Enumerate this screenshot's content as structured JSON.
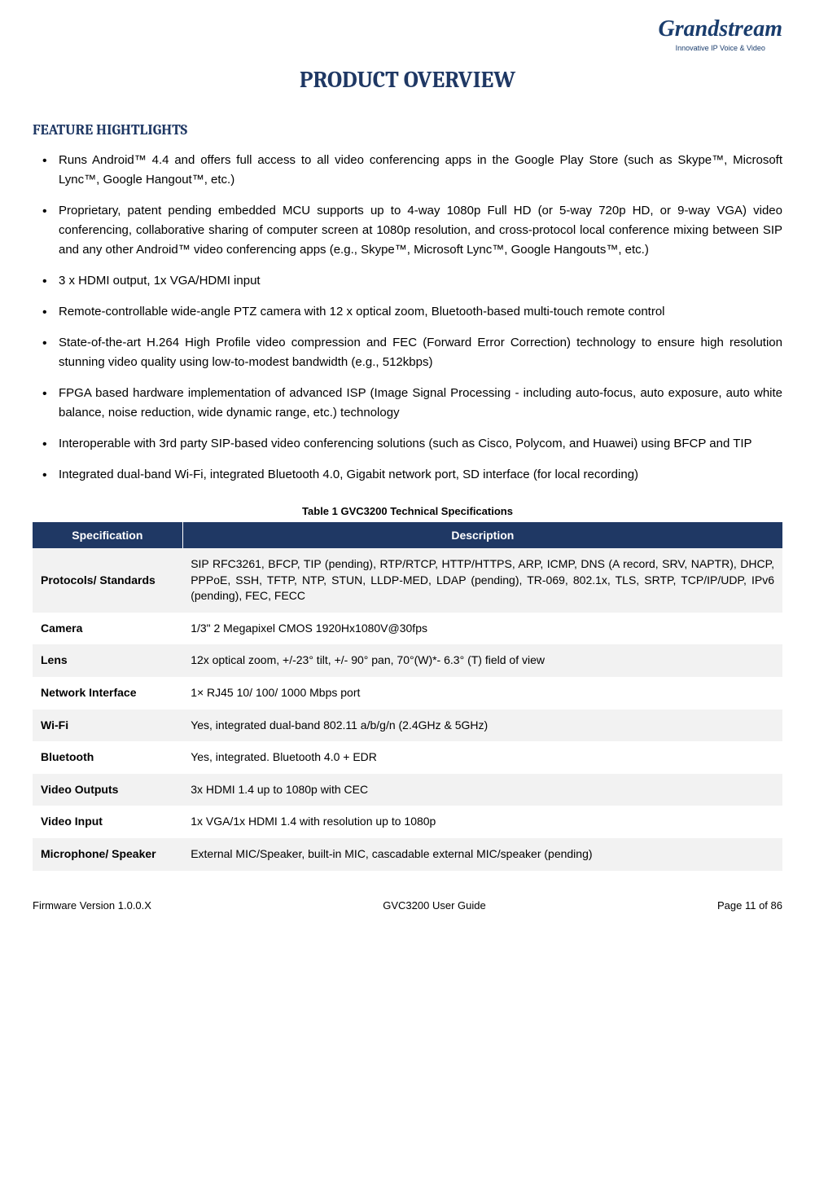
{
  "logo": {
    "brand": "Grandstream",
    "tagline": "Innovative IP Voice & Video"
  },
  "title": "PRODUCT OVERVIEW",
  "section_heading": "FEATURE HIGHTLIGHTS",
  "features": [
    "Runs Android™ 4.4 and offers full access to all video conferencing apps in the Google Play Store (such as Skype™, Microsoft Lync™, Google Hangout™, etc.)",
    "Proprietary, patent pending embedded MCU supports up to 4-way 1080p Full HD (or 5-way 720p HD, or 9-way VGA) video conferencing, collaborative sharing of computer screen at 1080p resolution, and cross-protocol local conference mixing between SIP and any other Android™ video conferencing apps (e.g., Skype™, Microsoft Lync™, Google Hangouts™, etc.)",
    "3 x HDMI output, 1x VGA/HDMI input",
    "Remote-controllable wide-angle PTZ camera with 12 x optical zoom, Bluetooth-based multi-touch remote control",
    "State-of-the-art H.264 High Profile video compression and FEC (Forward Error Correction) technology to ensure high resolution stunning video quality using low-to-modest bandwidth (e.g., 512kbps)",
    "FPGA based hardware implementation of advanced ISP (Image Signal Processing - including auto-focus, auto exposure, auto white balance, noise reduction, wide dynamic range, etc.) technology",
    "Interoperable with 3rd party SIP-based video conferencing solutions (such as Cisco, Polycom, and Huawei) using BFCP and TIP",
    "Integrated dual-band Wi-Fi, integrated Bluetooth 4.0, Gigabit network port, SD interface (for local recording)"
  ],
  "table": {
    "caption": "Table 1 GVC3200 Technical Specifications",
    "headers": {
      "spec": "Specification",
      "desc": "Description"
    },
    "rows": [
      {
        "spec": "Protocols/ Standards",
        "desc": "SIP RFC3261, BFCP, TIP (pending), RTP/RTCP, HTTP/HTTPS, ARP, ICMP, DNS (A record, SRV, NAPTR), DHCP, PPPoE, SSH, TFTP, NTP, STUN, LLDP-MED, LDAP (pending), TR-069, 802.1x, TLS, SRTP, TCP/IP/UDP, IPv6 (pending), FEC, FECC"
      },
      {
        "spec": "Camera",
        "desc": "1/3\" 2 Megapixel CMOS 1920Hx1080V@30fps"
      },
      {
        "spec": "Lens",
        "desc": "12x optical zoom, +/-23° tilt, +/- 90° pan, 70°(W)*- 6.3° (T) field of view"
      },
      {
        "spec": "Network Interface",
        "desc": "1× RJ45 10/ 100/ 1000 Mbps port"
      },
      {
        "spec": "Wi-Fi",
        "desc": "Yes, integrated dual-band 802.11 a/b/g/n (2.4GHz & 5GHz)"
      },
      {
        "spec": "Bluetooth",
        "desc": "Yes, integrated. Bluetooth 4.0 + EDR"
      },
      {
        "spec": "Video Outputs",
        "desc": "3x HDMI 1.4 up to 1080p with CEC"
      },
      {
        "spec": "Video Input",
        "desc": "1x VGA/1x HDMI 1.4 with resolution up to 1080p"
      },
      {
        "spec": "Microphone/ Speaker",
        "desc": "External MIC/Speaker, built-in MIC, cascadable external MIC/speaker (pending)"
      }
    ]
  },
  "footer": {
    "left": "Firmware Version 1.0.0.X",
    "center": "GVC3200 User Guide",
    "right": "Page 11 of 86"
  }
}
